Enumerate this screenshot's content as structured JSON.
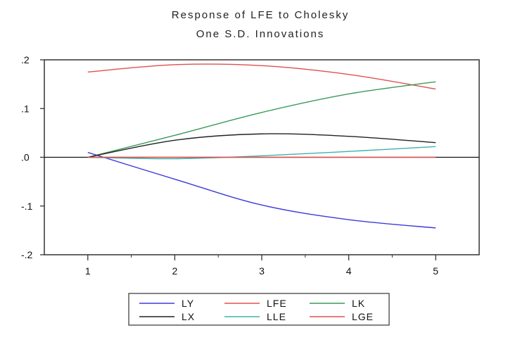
{
  "chart_data": {
    "type": "line",
    "title": "Response of LFE to Cholesky",
    "subtitle": "One S.D. Innovations",
    "xlabel": "",
    "ylabel": "",
    "x": [
      1,
      2,
      3,
      4,
      5
    ],
    "xlim": [
      0.5,
      5.5
    ],
    "ylim": [
      -0.2,
      0.2
    ],
    "y_ticks": [
      ".2",
      ".1",
      ".0",
      "-.1",
      "-.2"
    ],
    "y_tick_values": [
      0.2,
      0.1,
      0.0,
      -0.1,
      -0.2
    ],
    "x_ticks": [
      "1",
      "2",
      "3",
      "4",
      "5"
    ],
    "grid": false,
    "legend_position": "bottom",
    "series": [
      {
        "name": "LY",
        "color": "#3b3bdc",
        "values": [
          0.01,
          -0.045,
          -0.098,
          -0.128,
          -0.145
        ]
      },
      {
        "name": "LFE",
        "color": "#e05050",
        "values": [
          0.175,
          0.19,
          0.188,
          0.17,
          0.14
        ]
      },
      {
        "name": "LK",
        "color": "#3c9a5a",
        "values": [
          0.0,
          0.045,
          0.092,
          0.13,
          0.155
        ]
      },
      {
        "name": "LX",
        "color": "#222222",
        "values": [
          0.0,
          0.035,
          0.048,
          0.043,
          0.03
        ]
      },
      {
        "name": "LLE",
        "color": "#3fb3a8",
        "values": [
          0.0,
          -0.003,
          0.003,
          0.012,
          0.022
        ]
      },
      {
        "name": "LGE",
        "color": "#e05050",
        "values": [
          0.0,
          0.0,
          0.0,
          0.0,
          0.0
        ]
      }
    ]
  }
}
